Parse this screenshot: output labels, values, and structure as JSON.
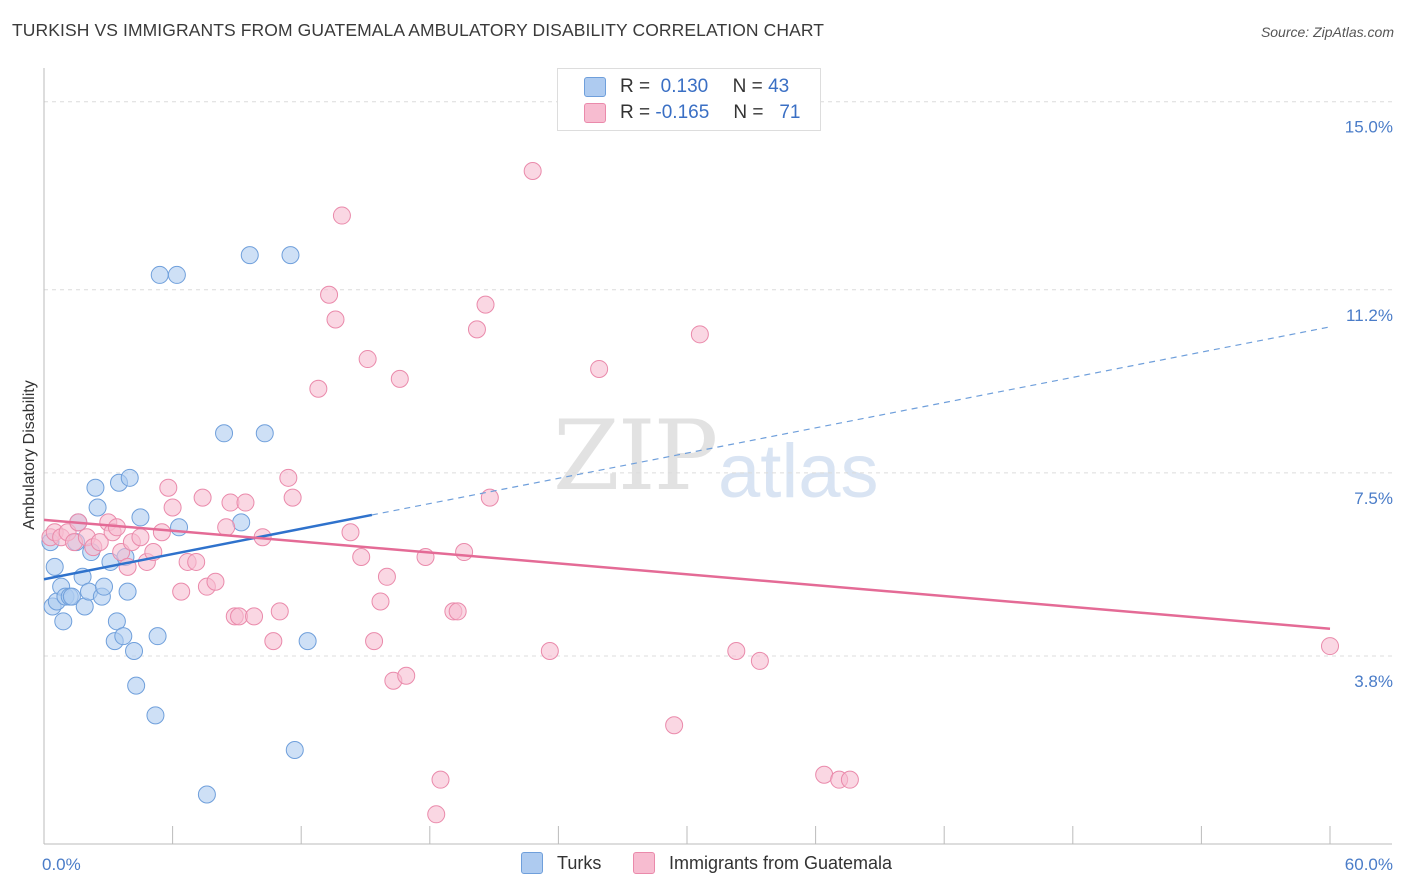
{
  "title": "TURKISH VS IMMIGRANTS FROM GUATEMALA AMBULATORY DISABILITY CORRELATION CHART",
  "source": "Source: ZipAtlas.com",
  "watermark": {
    "zip": "ZIP",
    "atlas": "atlas"
  },
  "legend": {
    "r_label": "R =",
    "n_label": "N =",
    "series": [
      {
        "name": "Turks",
        "r": "0.130",
        "n": "43",
        "fill": "#aecbf0",
        "stroke": "#6f9fdb"
      },
      {
        "name": "Immigrants from Guatemala",
        "r": "-0.165",
        "n": "71",
        "fill": "#f7bcd0",
        "stroke": "#ea8aab"
      }
    ]
  },
  "chart_data": {
    "type": "scatter",
    "title": "TURKISH VS IMMIGRANTS FROM GUATEMALA AMBULATORY DISABILITY CORRELATION CHART",
    "xlabel": "",
    "ylabel": "Ambulatory Disability",
    "xlim": [
      0.0,
      60.0
    ],
    "ylim": [
      0.0,
      15.5
    ],
    "x_tick_labels": [
      "0.0%",
      "60.0%"
    ],
    "y_ticks": [
      3.8,
      7.5,
      11.2,
      15.0
    ],
    "y_tick_labels": [
      "3.8%",
      "7.5%",
      "11.2%",
      "15.0%"
    ],
    "grid": true,
    "legend_position": "top-center",
    "series": [
      {
        "name": "Turks",
        "color": "#6f9fdb",
        "points": [
          [
            0.3,
            6.1
          ],
          [
            0.5,
            5.6
          ],
          [
            0.4,
            4.8
          ],
          [
            0.6,
            4.9
          ],
          [
            0.8,
            5.2
          ],
          [
            0.9,
            4.5
          ],
          [
            1.0,
            5.0
          ],
          [
            1.2,
            5.0
          ],
          [
            1.3,
            5.0
          ],
          [
            1.5,
            6.1
          ],
          [
            1.6,
            6.5
          ],
          [
            1.8,
            5.4
          ],
          [
            1.9,
            4.8
          ],
          [
            2.1,
            5.1
          ],
          [
            2.2,
            5.9
          ],
          [
            2.4,
            7.2
          ],
          [
            2.5,
            6.8
          ],
          [
            2.7,
            5.0
          ],
          [
            2.8,
            5.2
          ],
          [
            3.1,
            5.7
          ],
          [
            3.3,
            4.1
          ],
          [
            3.4,
            4.5
          ],
          [
            3.5,
            7.3
          ],
          [
            3.7,
            4.2
          ],
          [
            3.8,
            5.8
          ],
          [
            3.9,
            5.1
          ],
          [
            4.0,
            7.4
          ],
          [
            4.2,
            3.9
          ],
          [
            4.3,
            3.2
          ],
          [
            4.5,
            6.6
          ],
          [
            5.2,
            2.6
          ],
          [
            5.3,
            4.2
          ],
          [
            5.4,
            11.5
          ],
          [
            6.2,
            11.5
          ],
          [
            6.3,
            6.4
          ],
          [
            7.6,
            1.0
          ],
          [
            8.4,
            8.3
          ],
          [
            9.2,
            6.5
          ],
          [
            9.6,
            11.9
          ],
          [
            10.3,
            8.3
          ],
          [
            11.5,
            11.9
          ],
          [
            11.7,
            1.9
          ],
          [
            12.3,
            4.1
          ]
        ],
        "trend": {
          "x": [
            0.0,
            15.3,
            60.0
          ],
          "y": [
            5.35,
            6.65,
            10.45
          ],
          "solid_until": 15.3
        }
      },
      {
        "name": "Immigrants from Guatemala",
        "color": "#ea8aab",
        "points": [
          [
            0.3,
            6.2
          ],
          [
            0.5,
            6.3
          ],
          [
            0.8,
            6.2
          ],
          [
            1.1,
            6.3
          ],
          [
            1.4,
            6.1
          ],
          [
            1.6,
            6.5
          ],
          [
            2.0,
            6.2
          ],
          [
            2.3,
            6.0
          ],
          [
            2.6,
            6.1
          ],
          [
            3.0,
            6.5
          ],
          [
            3.2,
            6.3
          ],
          [
            3.4,
            6.4
          ],
          [
            3.6,
            5.9
          ],
          [
            3.9,
            5.6
          ],
          [
            4.1,
            6.1
          ],
          [
            4.5,
            6.2
          ],
          [
            4.8,
            5.7
          ],
          [
            5.1,
            5.9
          ],
          [
            5.5,
            6.3
          ],
          [
            5.8,
            7.2
          ],
          [
            6.0,
            6.8
          ],
          [
            6.4,
            5.1
          ],
          [
            6.7,
            5.7
          ],
          [
            7.1,
            5.7
          ],
          [
            7.4,
            7.0
          ],
          [
            7.6,
            5.2
          ],
          [
            8.0,
            5.3
          ],
          [
            8.5,
            6.4
          ],
          [
            8.7,
            6.9
          ],
          [
            8.9,
            4.6
          ],
          [
            9.1,
            4.6
          ],
          [
            9.4,
            6.9
          ],
          [
            9.8,
            4.6
          ],
          [
            10.2,
            6.2
          ],
          [
            10.7,
            4.1
          ],
          [
            11.0,
            4.7
          ],
          [
            11.4,
            7.4
          ],
          [
            11.6,
            7.0
          ],
          [
            12.8,
            9.2
          ],
          [
            13.3,
            11.1
          ],
          [
            13.6,
            10.6
          ],
          [
            14.3,
            6.3
          ],
          [
            13.9,
            12.7
          ],
          [
            14.8,
            5.8
          ],
          [
            15.1,
            9.8
          ],
          [
            15.4,
            4.1
          ],
          [
            15.7,
            4.9
          ],
          [
            16.0,
            5.4
          ],
          [
            16.3,
            3.3
          ],
          [
            16.6,
            9.4
          ],
          [
            16.9,
            3.4
          ],
          [
            17.8,
            5.8
          ],
          [
            18.3,
            0.6
          ],
          [
            18.5,
            1.3
          ],
          [
            19.1,
            4.7
          ],
          [
            19.3,
            4.7
          ],
          [
            19.6,
            5.9
          ],
          [
            20.2,
            10.4
          ],
          [
            20.6,
            10.9
          ],
          [
            20.8,
            7.0
          ],
          [
            22.8,
            13.6
          ],
          [
            23.6,
            3.9
          ],
          [
            25.9,
            9.6
          ],
          [
            29.4,
            2.4
          ],
          [
            30.6,
            10.3
          ],
          [
            32.3,
            3.9
          ],
          [
            33.4,
            3.7
          ],
          [
            36.4,
            1.4
          ],
          [
            37.1,
            1.3
          ],
          [
            37.6,
            1.3
          ],
          [
            60.0,
            4.0
          ]
        ],
        "trend": {
          "x": [
            0.0,
            60.0
          ],
          "y": [
            6.55,
            4.35
          ]
        }
      }
    ]
  }
}
